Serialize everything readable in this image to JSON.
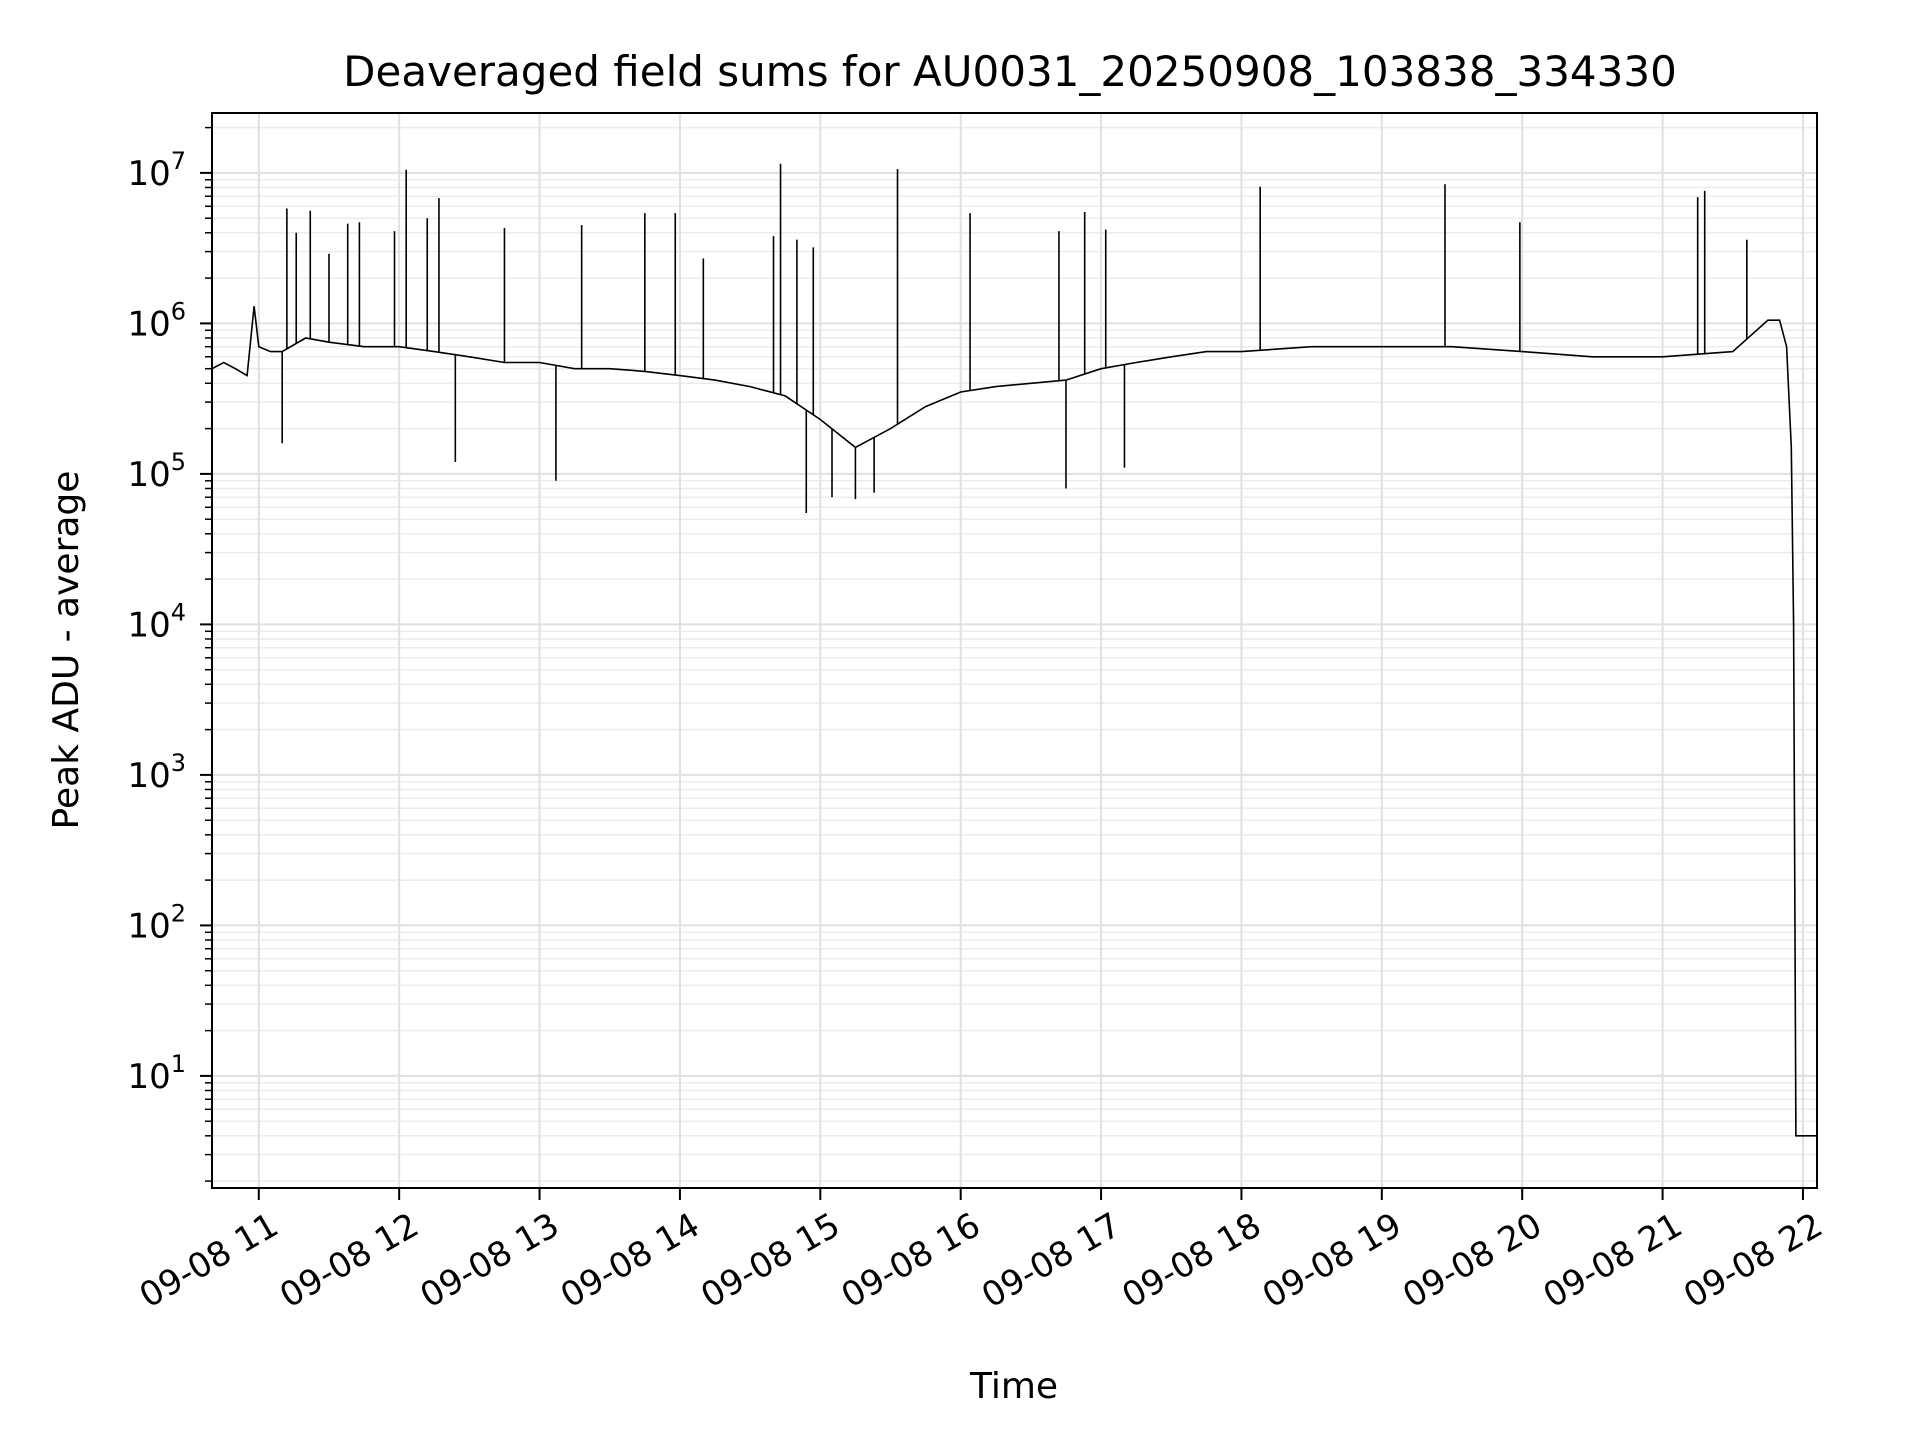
{
  "chart_data": {
    "type": "line",
    "title": "Deaveraged field sums for AU0031_20250908_103838_334330",
    "xlabel": "Time",
    "ylabel": "Peak ADU - average",
    "yscale": "log",
    "ylim": [
      1.8,
      25000000
    ],
    "xlim": [
      "2025-09-08 10:40",
      "2025-09-08 22:06"
    ],
    "grid": true,
    "x_ticks": [
      "09-08 11",
      "09-08 12",
      "09-08 13",
      "09-08 14",
      "09-08 15",
      "09-08 16",
      "09-08 17",
      "09-08 18",
      "09-08 19",
      "09-08 20",
      "09-08 21",
      "09-08 22"
    ],
    "y_ticks": [
      {
        "value": 10,
        "base": "10",
        "exp": "1"
      },
      {
        "value": 100,
        "base": "10",
        "exp": "2"
      },
      {
        "value": 1000,
        "base": "10",
        "exp": "3"
      },
      {
        "value": 10000,
        "base": "10",
        "exp": "4"
      },
      {
        "value": 100000,
        "base": "10",
        "exp": "5"
      },
      {
        "value": 1000000,
        "base": "10",
        "exp": "6"
      },
      {
        "value": 10000000,
        "base": "10",
        "exp": "7"
      }
    ],
    "series": [
      {
        "line_color": "#000000",
        "x": [
          "2025-09-08 10:40",
          "2025-09-08 10:45",
          "2025-09-08 10:50",
          "2025-09-08 10:55",
          "2025-09-08 10:58",
          "2025-09-08 11:00",
          "2025-09-08 11:05",
          "2025-09-08 11:10",
          "2025-09-08 11:20",
          "2025-09-08 11:30",
          "2025-09-08 11:45",
          "2025-09-08 12:00",
          "2025-09-08 12:15",
          "2025-09-08 12:30",
          "2025-09-08 12:45",
          "2025-09-08 13:00",
          "2025-09-08 13:15",
          "2025-09-08 13:30",
          "2025-09-08 13:45",
          "2025-09-08 14:00",
          "2025-09-08 14:15",
          "2025-09-08 14:30",
          "2025-09-08 14:45",
          "2025-09-08 15:00",
          "2025-09-08 15:15",
          "2025-09-08 15:30",
          "2025-09-08 15:45",
          "2025-09-08 16:00",
          "2025-09-08 16:15",
          "2025-09-08 16:30",
          "2025-09-08 16:45",
          "2025-09-08 17:00",
          "2025-09-08 17:15",
          "2025-09-08 17:30",
          "2025-09-08 17:45",
          "2025-09-08 18:00",
          "2025-09-08 18:30",
          "2025-09-08 19:00",
          "2025-09-08 19:30",
          "2025-09-08 20:00",
          "2025-09-08 20:30",
          "2025-09-08 21:00",
          "2025-09-08 21:30",
          "2025-09-08 21:45",
          "2025-09-08 21:50",
          "2025-09-08 21:53",
          "2025-09-08 21:55",
          "2025-09-08 21:56",
          "2025-09-08 21:57",
          "2025-09-08 22:06"
        ],
        "y": [
          500000,
          550000,
          500000,
          450000,
          1300000,
          700000,
          650000,
          650000,
          800000,
          750000,
          700000,
          700000,
          650000,
          600000,
          550000,
          550000,
          500000,
          500000,
          480000,
          450000,
          420000,
          380000,
          330000,
          230000,
          150000,
          200000,
          280000,
          350000,
          380000,
          400000,
          420000,
          500000,
          550000,
          600000,
          650000,
          650000,
          700000,
          700000,
          700000,
          650000,
          600000,
          600000,
          650000,
          1050000,
          1050000,
          700000,
          150000,
          10000,
          4,
          4
        ]
      }
    ],
    "spikes": [
      {
        "x": "2025-09-08 11:12",
        "y": 5800000
      },
      {
        "x": "2025-09-08 11:16",
        "y": 4000000
      },
      {
        "x": "2025-09-08 11:22",
        "y": 5600000
      },
      {
        "x": "2025-09-08 11:30",
        "y": 2900000
      },
      {
        "x": "2025-09-08 11:38",
        "y": 4600000
      },
      {
        "x": "2025-09-08 11:43",
        "y": 4700000
      },
      {
        "x": "2025-09-08 11:58",
        "y": 4100000
      },
      {
        "x": "2025-09-08 12:03",
        "y": 10500000
      },
      {
        "x": "2025-09-08 12:12",
        "y": 5000000
      },
      {
        "x": "2025-09-08 12:17",
        "y": 6800000
      },
      {
        "x": "2025-09-08 12:45",
        "y": 4300000
      },
      {
        "x": "2025-09-08 13:18",
        "y": 4500000
      },
      {
        "x": "2025-09-08 13:45",
        "y": 5400000
      },
      {
        "x": "2025-09-08 13:58",
        "y": 5400000
      },
      {
        "x": "2025-09-08 14:10",
        "y": 2700000
      },
      {
        "x": "2025-09-08 14:40",
        "y": 3800000
      },
      {
        "x": "2025-09-08 14:43",
        "y": 11500000
      },
      {
        "x": "2025-09-08 14:50",
        "y": 3600000
      },
      {
        "x": "2025-09-08 14:57",
        "y": 3200000
      },
      {
        "x": "2025-09-08 15:33",
        "y": 10600000
      },
      {
        "x": "2025-09-08 16:04",
        "y": 5400000
      },
      {
        "x": "2025-09-08 16:42",
        "y": 4100000
      },
      {
        "x": "2025-09-08 16:53",
        "y": 5500000
      },
      {
        "x": "2025-09-08 17:02",
        "y": 4200000
      },
      {
        "x": "2025-09-08 18:08",
        "y": 8100000
      },
      {
        "x": "2025-09-08 19:27",
        "y": 8400000
      },
      {
        "x": "2025-09-08 19:59",
        "y": 4700000
      },
      {
        "x": "2025-09-08 21:15",
        "y": 6900000
      },
      {
        "x": "2025-09-08 21:18",
        "y": 7600000
      },
      {
        "x": "2025-09-08 21:36",
        "y": 3600000
      }
    ],
    "dips": [
      {
        "x": "2025-09-08 11:10",
        "y": 160000
      },
      {
        "x": "2025-09-08 12:24",
        "y": 120000
      },
      {
        "x": "2025-09-08 13:07",
        "y": 90000
      },
      {
        "x": "2025-09-08 14:54",
        "y": 55000
      },
      {
        "x": "2025-09-08 15:05",
        "y": 70000
      },
      {
        "x": "2025-09-08 15:15",
        "y": 68000
      },
      {
        "x": "2025-09-08 15:23",
        "y": 75000
      },
      {
        "x": "2025-09-08 16:45",
        "y": 80000
      },
      {
        "x": "2025-09-08 17:10",
        "y": 110000
      }
    ]
  }
}
